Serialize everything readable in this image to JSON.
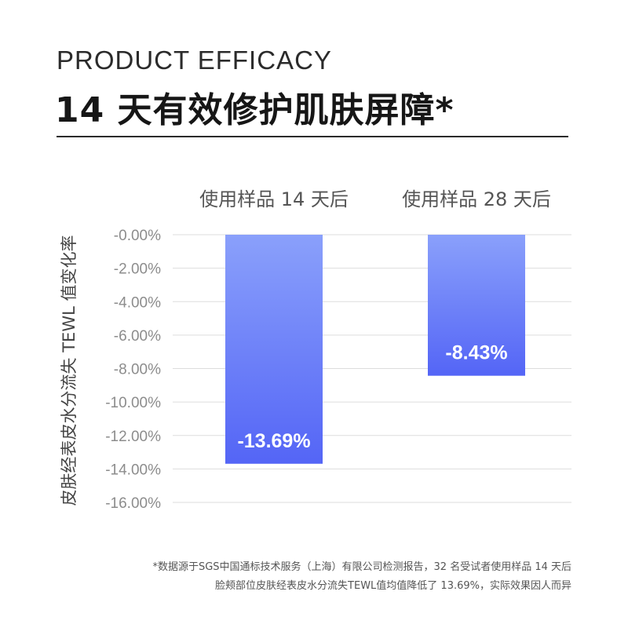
{
  "header": {
    "kicker": "PRODUCT EFFICACY",
    "title": "14 天有效修护肌肤屏障*"
  },
  "chart_data": {
    "type": "bar",
    "categories": [
      "使用样品 14 天后",
      "使用样品 28 天后"
    ],
    "values": [
      -13.69,
      -8.43
    ],
    "value_labels": [
      "-13.69%",
      "-8.43%"
    ],
    "ylabel": "皮肤经表皮水分流失 TEWL 值变化率",
    "yticks": [
      -0.0,
      -2.0,
      -4.0,
      -6.0,
      -8.0,
      -10.0,
      -12.0,
      -14.0,
      -16.0
    ],
    "ytick_labels": [
      "-0.00%",
      "-2.00%",
      "-4.00%",
      "-6.00%",
      "-8.00%",
      "-10.00%",
      "-12.00%",
      "-14.00%",
      "-16.00%"
    ],
    "ylim": [
      0,
      -16
    ],
    "grid": true
  },
  "colors": {
    "bar_top": "#8aa0fb",
    "bar_bottom": "#5465f6",
    "grid": "#dddddd",
    "tick_text": "#8c8c8c"
  },
  "footnote": {
    "line1": "*数据源于SGS中国通标技术服务（上海）有限公司检测报告，32 名受试者使用样品 14 天后",
    "line2": "脸颊部位皮肤经表皮水分流失TEWL值均值降低了 13.69%，实际效果因人而异"
  }
}
